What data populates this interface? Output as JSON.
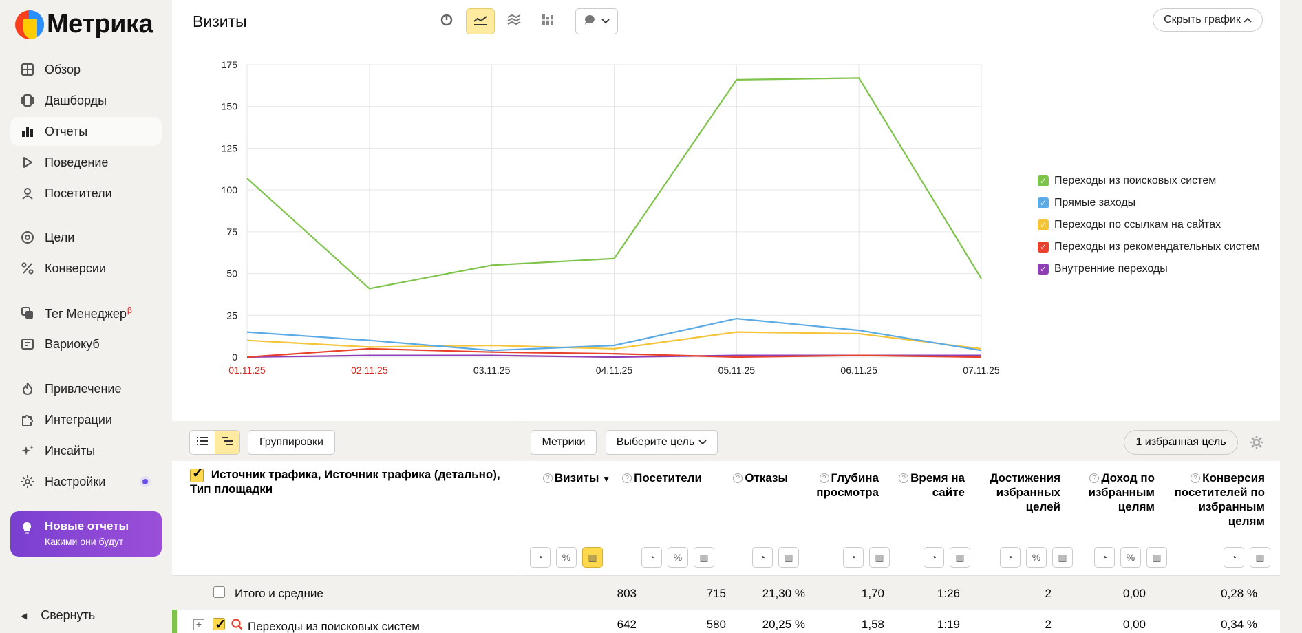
{
  "brand": {
    "name": "Метрика"
  },
  "sidebar": {
    "items": [
      {
        "label": "Обзор"
      },
      {
        "label": "Дашборды"
      },
      {
        "label": "Отчеты"
      },
      {
        "label": "Поведение"
      },
      {
        "label": "Посетители"
      },
      {
        "label": "Цели"
      },
      {
        "label": "Конверсии"
      },
      {
        "label": "Тег Менеджер",
        "badge": "β"
      },
      {
        "label": "Вариокуб"
      },
      {
        "label": "Привлечение"
      },
      {
        "label": "Интеграции"
      },
      {
        "label": "Инсайты"
      },
      {
        "label": "Настройки"
      }
    ],
    "promo": {
      "title": "Новые отчеты",
      "subtitle": "Какими они будут"
    },
    "collapse": "Свернуть"
  },
  "chart_header": {
    "title": "Визиты",
    "hide_button": "Скрыть график"
  },
  "chart_data": {
    "type": "line",
    "x": [
      "01.11.25",
      "02.11.25",
      "03.11.25",
      "04.11.25",
      "05.11.25",
      "06.11.25",
      "07.11.25"
    ],
    "weekend_x": [
      "01.11.25",
      "02.11.25"
    ],
    "yticks": [
      0,
      25,
      50,
      75,
      100,
      125,
      150,
      175
    ],
    "ylim": [
      0,
      175
    ],
    "grid": true,
    "legend_position": "right",
    "series": [
      {
        "name": "Переходы из поисковых систем",
        "color": "#7ec34a",
        "values": [
          107,
          41,
          55,
          59,
          166,
          167,
          47
        ]
      },
      {
        "name": "Прямые заходы",
        "color": "#5aaae6",
        "values": [
          15,
          10,
          4,
          7,
          23,
          16,
          4
        ]
      },
      {
        "name": "Переходы по ссылкам на сайтах",
        "color": "#f6c438",
        "values": [
          10,
          6,
          7,
          5,
          15,
          14,
          5
        ]
      },
      {
        "name": "Переходы из рекомендательных систем",
        "color": "#e8412c",
        "values": [
          0,
          5,
          3,
          2,
          0,
          1,
          0
        ]
      },
      {
        "name": "Внутренние переходы",
        "color": "#8e3fb5",
        "values": [
          0,
          1,
          1,
          0,
          1,
          1,
          1
        ]
      }
    ]
  },
  "table_toolbar": {
    "groupings": "Группировки",
    "metrics": "Метрики",
    "goal_select": "Выберите цель",
    "favorite_goal": "1 избранная цель"
  },
  "table": {
    "dimension_header": "Источник трафика, Источник трафика (детально), Тип площадки",
    "columns": [
      {
        "label": "Визиты",
        "sort": "▼"
      },
      {
        "label": "Посетители"
      },
      {
        "label": "Отказы"
      },
      {
        "label": "Глубина просмотра"
      },
      {
        "label": "Время на сайте"
      },
      {
        "label": "Достижения избранных целей"
      },
      {
        "label": "Доход по избранным целям"
      },
      {
        "label": "Конверсия посетителей по избранным целям"
      }
    ],
    "total_row": {
      "label": "Итого и средние",
      "values": [
        "803",
        "715",
        "21,30 %",
        "1,70",
        "1:26",
        "2",
        "0,00",
        "0,28 %"
      ]
    },
    "rows": [
      {
        "label": "Переходы из поисковых систем",
        "values": [
          "642",
          "580",
          "20,25 %",
          "1,58",
          "1:19",
          "2",
          "0,00",
          "0,34 %"
        ]
      }
    ]
  }
}
